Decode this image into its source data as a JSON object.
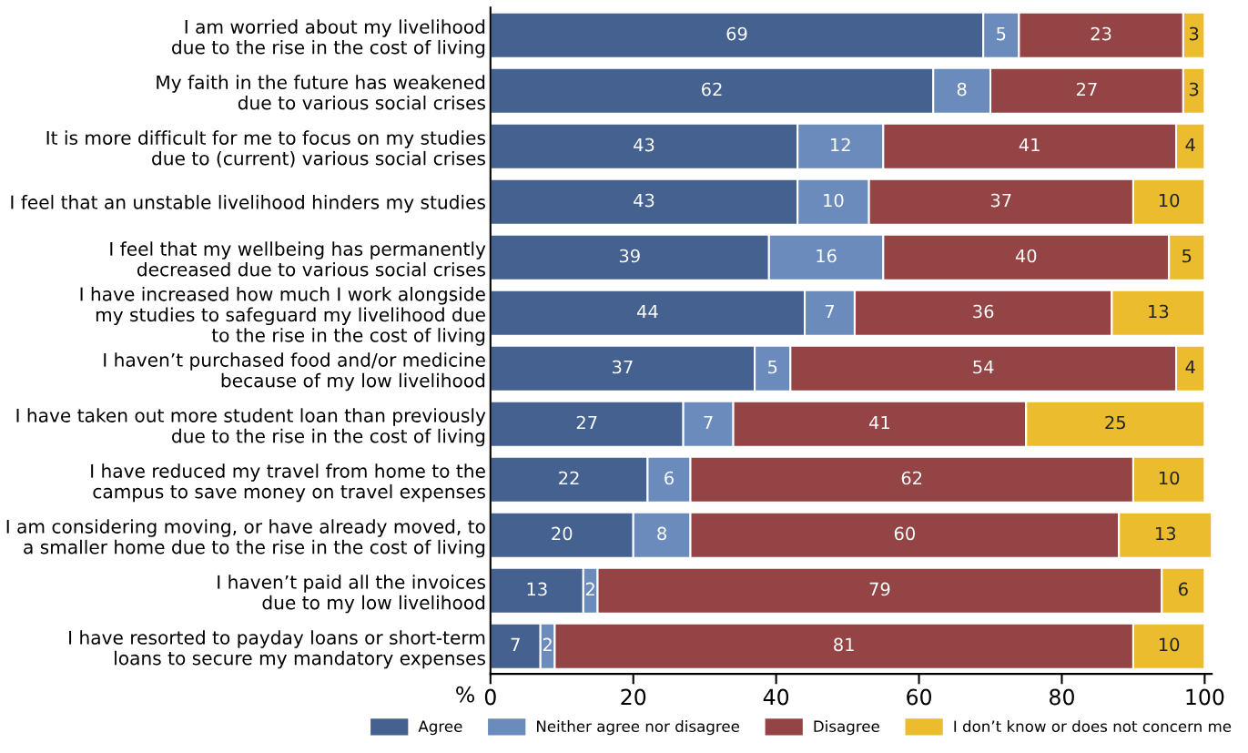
{
  "chart_data": {
    "type": "bar",
    "orientation": "horizontal",
    "stacked": true,
    "data_labels": true,
    "legend": "bottom",
    "grid": false,
    "xlabel": "%",
    "categories": [
      "I am worried about my livelihood\ndue to the rise in the cost of living",
      "My faith in the future has weakened\ndue to various social crises",
      "It is more difficult for me to focus on my studies\ndue to (current) various social crises",
      "I feel that an unstable livelihood hinders my studies",
      "I feel that my wellbeing has permanently\ndecreased due to various social crises",
      "I have increased how much I work alongside\nmy studies to safeguard my livelihood due\nto the rise in the cost of living",
      "I haven’t purchased food and/or medicine\nbecause of my low livelihood",
      "I have taken out more student loan than previously\ndue to the rise in the cost of living",
      "I have reduced my travel from home to the\ncampus to save money on travel expenses",
      "I am considering moving, or have already moved, to\na smaller home due to the rise in the cost of living",
      "I haven’t paid all the invoices\ndue to my low livelihood",
      "I have resorted to payday loans or short-term\nloans to secure my mandatory expenses"
    ],
    "series": [
      {
        "name": "Agree",
        "color": "#44618f",
        "values": [
          69,
          62,
          43,
          43,
          39,
          44,
          37,
          27,
          22,
          20,
          13,
          7
        ]
      },
      {
        "name": "Neither agree nor disagree",
        "color": "#6a8bbc",
        "values": [
          5,
          8,
          12,
          10,
          16,
          7,
          5,
          7,
          6,
          8,
          2,
          2
        ]
      },
      {
        "name": "Disagree",
        "color": "#944444",
        "values": [
          23,
          27,
          41,
          37,
          40,
          36,
          54,
          41,
          62,
          60,
          79,
          81
        ]
      },
      {
        "name": "I don’t know or does not concern me",
        "color": "#ebbd2e",
        "values": [
          3,
          3,
          4,
          10,
          5,
          13,
          4,
          25,
          10,
          13,
          6,
          10
        ]
      }
    ],
    "xlim": [
      0,
      101
    ],
    "xticks": [
      0,
      20,
      40,
      60,
      80,
      100
    ]
  }
}
